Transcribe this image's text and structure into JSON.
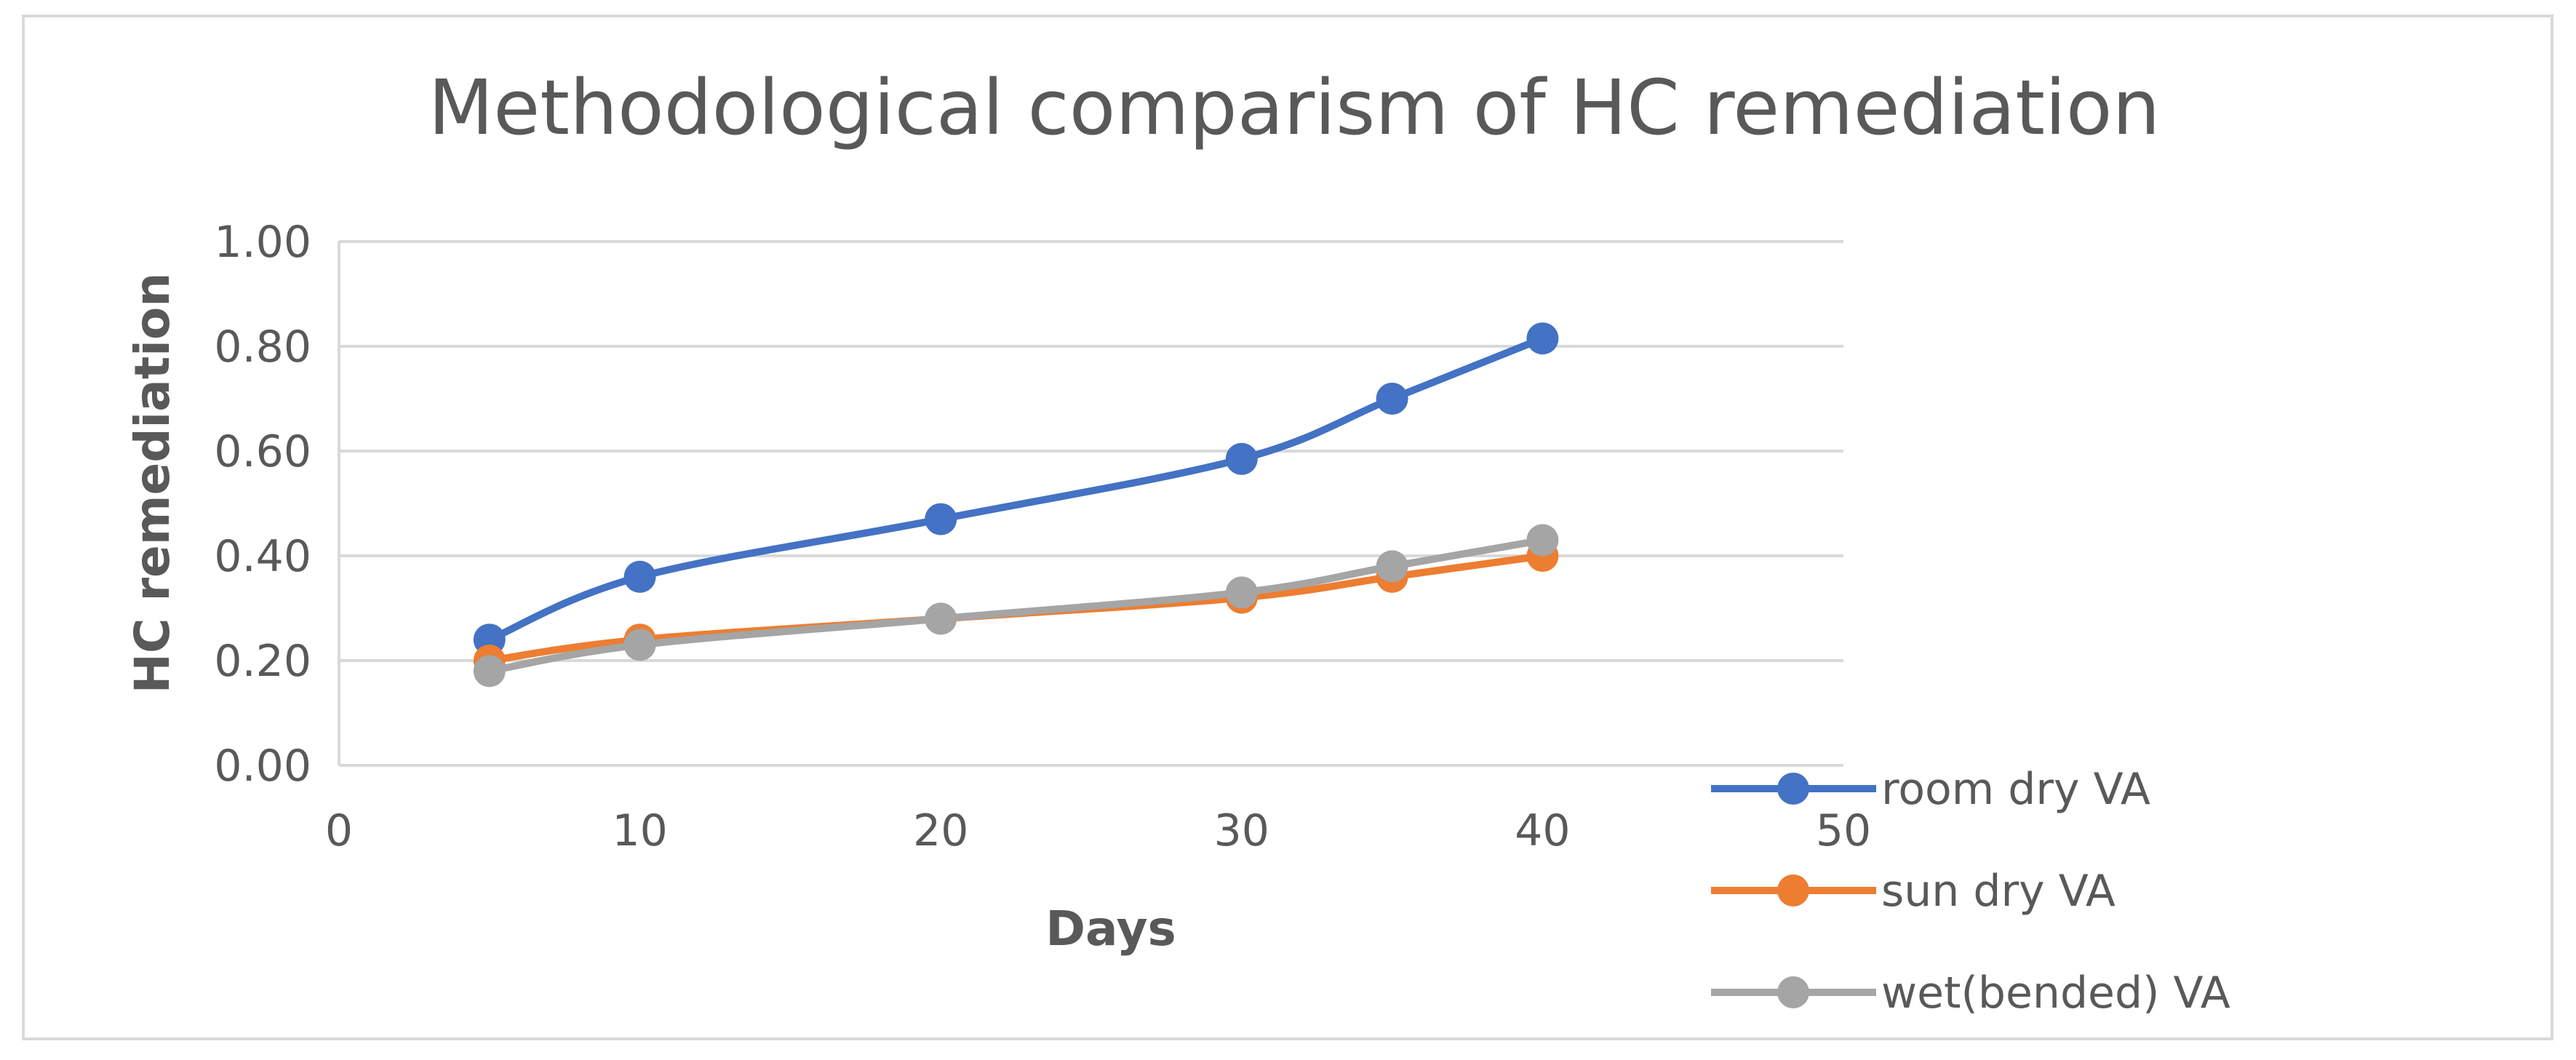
{
  "chart_data": {
    "type": "line",
    "title": "Methodological comparism of HC remediation",
    "xlabel": "Days",
    "ylabel": "HC remediation",
    "xlim": [
      0,
      50
    ],
    "ylim": [
      0,
      1
    ],
    "x_ticks": [
      "0",
      "10",
      "20",
      "30",
      "40",
      "50"
    ],
    "y_ticks": [
      "0.00",
      "0.20",
      "0.40",
      "0.60",
      "0.80",
      "1.00"
    ],
    "grid": true,
    "smooth": true,
    "legend_position": "bottom-right",
    "x": [
      5,
      10,
      20,
      30,
      35,
      40
    ],
    "series": [
      {
        "name": "room dry VA",
        "color": "#4472C4",
        "values": [
          0.24,
          0.36,
          0.47,
          0.585,
          0.7,
          0.815
        ]
      },
      {
        "name": "sun dry VA",
        "color": "#ED7D31",
        "values": [
          0.2,
          0.24,
          0.28,
          0.32,
          0.36,
          0.4
        ]
      },
      {
        "name": "wet(bended) VA",
        "color": "#A5A5A5",
        "values": [
          0.18,
          0.23,
          0.28,
          0.33,
          0.38,
          0.43
        ]
      }
    ]
  }
}
